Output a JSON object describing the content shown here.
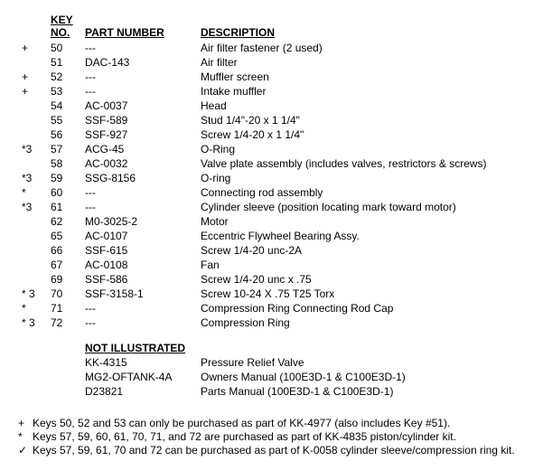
{
  "headers": {
    "key_top": "KEY",
    "key_bot": "NO.",
    "part": "PART NUMBER",
    "desc": "DESCRIPTION"
  },
  "rows": [
    {
      "sym": "+",
      "key": "50",
      "part": "---",
      "desc": "Air filter fastener (2 used)"
    },
    {
      "sym": "",
      "key": "51",
      "part": "DAC-143",
      "desc": "Air filter"
    },
    {
      "sym": "+",
      "key": "52",
      "part": "---",
      "desc": "Muffler screen"
    },
    {
      "sym": "+",
      "key": "53",
      "part": "---",
      "desc": "Intake muffler"
    },
    {
      "sym": "",
      "key": "54",
      "part": "AC-0037",
      "desc": "Head"
    },
    {
      "sym": "",
      "key": "55",
      "part": "SSF-589",
      "desc": "Stud 1/4\"-20 x 1 1/4\""
    },
    {
      "sym": "",
      "key": "56",
      "part": "SSF-927",
      "desc": "Screw 1/4-20 x 1 1/4\""
    },
    {
      "sym": "*3",
      "key": "57",
      "part": "ACG-45",
      "desc": "O-Ring"
    },
    {
      "sym": "",
      "key": "58",
      "part": "AC-0032",
      "desc": "Valve plate assembly (includes valves, restrictors & screws)"
    },
    {
      "sym": "*3",
      "key": "59",
      "part": "SSG-8156",
      "desc": "O-ring"
    },
    {
      "sym": "*",
      "key": "60",
      "part": "---",
      "desc": "Connecting rod assembly"
    },
    {
      "sym": "*3",
      "key": "61",
      "part": "---",
      "desc": "Cylinder sleeve (position locating mark toward motor)"
    },
    {
      "sym": "",
      "key": "62",
      "part": "M0-3025-2",
      "desc": "Motor"
    },
    {
      "sym": "",
      "key": "65",
      "part": "AC-0107",
      "desc": "Eccentric Flywheel Bearing Assy."
    },
    {
      "sym": "",
      "key": "66",
      "part": "SSF-615",
      "desc": "Screw  1/4-20 unc-2A"
    },
    {
      "sym": "",
      "key": "67",
      "part": "AC-0108",
      "desc": "Fan"
    },
    {
      "sym": "",
      "key": "69",
      "part": "SSF-586",
      "desc": "Screw 1/4-20 unc x .75"
    },
    {
      "sym": "*  3",
      "key": "70",
      "part": "SSF-3158-1",
      "desc": "Screw 10-24 X .75 T25 Torx"
    },
    {
      "sym": "*",
      "key": "71",
      "part": "---",
      "desc": "Compression Ring Connecting Rod Cap"
    },
    {
      "sym": "*  3",
      "key": "72",
      "part": "---",
      "desc": "Compression Ring"
    }
  ],
  "not_illustrated_label": "NOT ILLUSTRATED",
  "not_illustrated": [
    {
      "part": "KK-4315",
      "desc": "Pressure Relief Valve"
    },
    {
      "part": "MG2-OFTANK-4A",
      "desc": "Owners Manual (100E3D-1 & C100E3D-1)"
    },
    {
      "part": "D23821",
      "desc": "Parts Manual (100E3D-1 & C100E3D-1)"
    }
  ],
  "footnotes": [
    {
      "sym": "+",
      "text": "Keys 50,  52 and 53 can only be purchased as part of KK-4977 (also includes Key #51)."
    },
    {
      "sym": "*",
      "text": "Keys 57, 59, 60, 61, 70, 71, and 72 are purchased as part of KK-4835 piston/cylinder kit."
    },
    {
      "sym": "✓",
      "text": "Keys 57, 59, 61, 70 and 72 can be purchased as part of K-0058 cylinder sleeve/compression ring kit."
    }
  ]
}
